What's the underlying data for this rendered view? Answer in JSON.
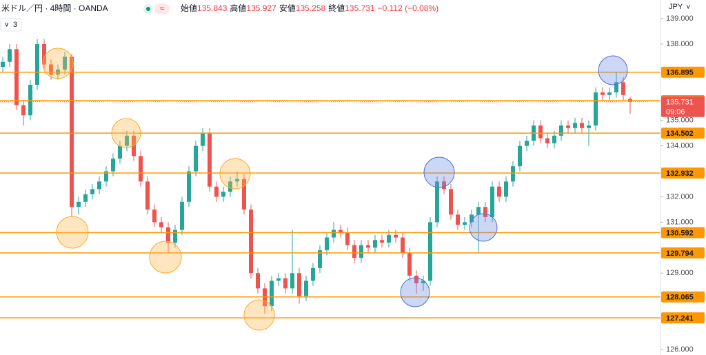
{
  "header": {
    "symbol": "米ドル／円 · 4時間 · OANDA",
    "badge": "≈",
    "ohlc": [
      {
        "label": "始値",
        "value": "135.843"
      },
      {
        "label": "高値",
        "value": "135.927"
      },
      {
        "label": "安値",
        "value": "135.258"
      },
      {
        "label": "終値",
        "value": "135.731"
      }
    ],
    "change": "−0.112 (−0.08%)",
    "indicator_count": "3",
    "currency": "JPY"
  },
  "chart_data": {
    "type": "candlestick",
    "up_color": "#26a69a",
    "down_color": "#ef5350",
    "level_color": "#ff9800",
    "ylim": [
      125.783,
      139.731
    ],
    "yticks": [
      {
        "value": 139,
        "label": "139.000"
      },
      {
        "value": 138,
        "label": "138.000"
      },
      {
        "value": 135,
        "label": "135.000"
      },
      {
        "value": 134,
        "label": "134.000"
      },
      {
        "value": 132,
        "label": "132.000"
      },
      {
        "value": 131,
        "label": "131.000"
      },
      {
        "value": 129,
        "label": "129.000"
      },
      {
        "value": 126,
        "label": "126.000"
      }
    ],
    "levels": [
      136.895,
      135.778,
      134.502,
      132.932,
      130.592,
      129.794,
      128.065,
      127.241
    ],
    "last_price": 135.731,
    "countdown": "09:06",
    "candles": [
      [
        137.1,
        137.5,
        136.9,
        137.3
      ],
      [
        137.3,
        138.0,
        137.1,
        137.8
      ],
      [
        137.8,
        138.0,
        135.4,
        135.6
      ],
      [
        135.6,
        135.8,
        134.8,
        135.2
      ],
      [
        135.2,
        136.6,
        135.0,
        136.4
      ],
      [
        136.4,
        138.2,
        136.2,
        138.0
      ],
      [
        138.0,
        138.2,
        137.0,
        137.2
      ],
      [
        137.2,
        137.4,
        136.6,
        136.8
      ],
      [
        136.8,
        137.2,
        136.6,
        137.0
      ],
      [
        137.0,
        137.7,
        136.8,
        137.5
      ],
      [
        137.5,
        137.6,
        131.2,
        131.6
      ],
      [
        131.6,
        132.0,
        131.3,
        131.8
      ],
      [
        131.8,
        132.3,
        131.6,
        132.1
      ],
      [
        132.1,
        132.5,
        131.9,
        132.3
      ],
      [
        132.3,
        132.8,
        132.1,
        132.6
      ],
      [
        132.6,
        133.2,
        132.4,
        133.0
      ],
      [
        133.0,
        133.7,
        132.8,
        133.5
      ],
      [
        133.5,
        134.2,
        133.3,
        134.0
      ],
      [
        134.0,
        134.6,
        133.8,
        134.4
      ],
      [
        134.4,
        134.6,
        133.4,
        133.6
      ],
      [
        133.6,
        133.8,
        132.4,
        132.6
      ],
      [
        132.6,
        132.8,
        131.3,
        131.5
      ],
      [
        131.5,
        131.7,
        130.8,
        131.0
      ],
      [
        131.0,
        131.2,
        130.6,
        130.8
      ],
      [
        130.8,
        131.0,
        129.8,
        130.2
      ],
      [
        130.2,
        130.9,
        130.0,
        130.7
      ],
      [
        130.7,
        132.0,
        130.5,
        131.8
      ],
      [
        131.8,
        133.2,
        131.6,
        133.0
      ],
      [
        133.0,
        134.2,
        132.8,
        134.0
      ],
      [
        134.0,
        134.7,
        133.8,
        134.5
      ],
      [
        134.5,
        134.7,
        132.2,
        132.4
      ],
      [
        132.4,
        132.6,
        131.8,
        132.0
      ],
      [
        132.0,
        132.4,
        131.8,
        132.2
      ],
      [
        132.2,
        132.8,
        132.0,
        132.6
      ],
      [
        132.6,
        133.0,
        132.4,
        132.7
      ],
      [
        132.7,
        132.9,
        131.3,
        131.5
      ],
      [
        131.5,
        131.7,
        128.8,
        129.0
      ],
      [
        129.0,
        129.2,
        128.2,
        128.4
      ],
      [
        128.4,
        128.6,
        127.4,
        127.7
      ],
      [
        127.7,
        128.9,
        127.5,
        128.7
      ],
      [
        128.7,
        129.0,
        128.5,
        128.8
      ],
      [
        128.8,
        129.0,
        128.2,
        128.4
      ],
      [
        128.4,
        130.7,
        128.2,
        129.0
      ],
      [
        129.0,
        129.2,
        127.8,
        128.1
      ],
      [
        128.1,
        128.9,
        127.9,
        128.7
      ],
      [
        128.7,
        129.4,
        128.5,
        129.2
      ],
      [
        129.2,
        130.1,
        129.0,
        129.9
      ],
      [
        129.9,
        130.6,
        129.7,
        130.4
      ],
      [
        130.4,
        131.0,
        130.2,
        130.7
      ],
      [
        130.7,
        130.9,
        130.4,
        130.6
      ],
      [
        130.6,
        130.8,
        129.9,
        130.1
      ],
      [
        130.1,
        130.3,
        129.4,
        129.6
      ],
      [
        129.6,
        130.3,
        129.4,
        130.1
      ],
      [
        130.1,
        130.3,
        129.8,
        130.0
      ],
      [
        130.0,
        130.5,
        129.8,
        130.3
      ],
      [
        130.3,
        130.5,
        130.0,
        130.2
      ],
      [
        130.2,
        130.7,
        130.0,
        130.5
      ],
      [
        130.5,
        130.7,
        130.2,
        130.4
      ],
      [
        130.4,
        130.6,
        129.6,
        129.8
      ],
      [
        129.8,
        130.0,
        128.7,
        128.9
      ],
      [
        128.9,
        129.1,
        128.2,
        128.6
      ],
      [
        128.6,
        128.9,
        128.3,
        128.7
      ],
      [
        128.7,
        131.2,
        128.5,
        131.0
      ],
      [
        131.0,
        132.8,
        130.8,
        132.6
      ],
      [
        132.6,
        132.8,
        132.1,
        132.3
      ],
      [
        132.3,
        132.5,
        131.1,
        131.3
      ],
      [
        131.3,
        131.5,
        130.7,
        130.9
      ],
      [
        130.9,
        131.2,
        130.7,
        131.0
      ],
      [
        131.0,
        131.5,
        130.8,
        131.3
      ],
      [
        131.3,
        131.8,
        129.8,
        131.6
      ],
      [
        131.6,
        131.8,
        131.0,
        131.2
      ],
      [
        131.2,
        132.6,
        131.0,
        132.4
      ],
      [
        132.4,
        132.6,
        131.8,
        132.0
      ],
      [
        132.0,
        132.8,
        131.8,
        132.6
      ],
      [
        132.6,
        133.4,
        132.4,
        133.2
      ],
      [
        133.2,
        134.2,
        133.0,
        134.0
      ],
      [
        134.0,
        134.4,
        133.8,
        134.2
      ],
      [
        134.2,
        135.0,
        134.0,
        134.8
      ],
      [
        134.8,
        135.0,
        134.1,
        134.3
      ],
      [
        134.3,
        134.5,
        133.9,
        134.1
      ],
      [
        134.1,
        134.6,
        133.9,
        134.4
      ],
      [
        134.4,
        135.0,
        134.2,
        134.8
      ],
      [
        134.8,
        135.0,
        134.5,
        134.7
      ],
      [
        134.7,
        135.1,
        134.5,
        134.9
      ],
      [
        134.9,
        135.1,
        134.5,
        134.7
      ],
      [
        134.7,
        135.0,
        134.0,
        134.8
      ],
      [
        134.8,
        136.3,
        134.6,
        136.1
      ],
      [
        136.1,
        136.3,
        135.8,
        136.0
      ],
      [
        136.0,
        136.3,
        135.8,
        136.1
      ],
      [
        136.1,
        136.9,
        135.9,
        136.5
      ],
      [
        136.5,
        136.7,
        135.8,
        136.0
      ],
      [
        135.843,
        135.927,
        135.258,
        135.731
      ]
    ]
  }
}
